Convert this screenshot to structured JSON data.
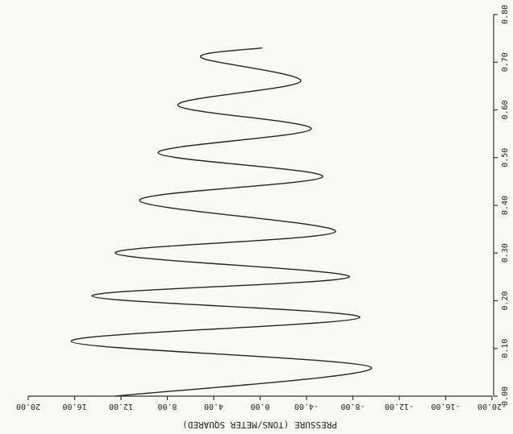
{
  "chart_data": {
    "type": "line",
    "orientation": "vertical-time",
    "x_label": "PRESSURE (TONS/METER SQUARED)",
    "x": [
      0.0,
      0.06,
      0.115,
      0.165,
      0.21,
      0.25,
      0.3,
      0.345,
      0.41,
      0.46,
      0.51,
      0.56,
      0.61,
      0.66,
      0.71,
      0.73
    ],
    "values": [
      12.5,
      -9.6,
      16.3,
      -8.6,
      14.5,
      -7.7,
      12.5,
      -6.5,
      10.4,
      -5.4,
      8.8,
      -4.4,
      7.1,
      -3.5,
      5.1,
      -0.2
    ],
    "color": "#222222",
    "xlim": [
      0,
      0.8
    ],
    "xticks": [
      {
        "value": 0,
        "label": "0.00"
      },
      {
        "value": 0.1,
        "label": "0.10"
      },
      {
        "value": 0.2,
        "label": "0.20"
      },
      {
        "value": 0.3,
        "label": "0.30"
      },
      {
        "value": 0.4,
        "label": "0.40"
      },
      {
        "value": 0.5,
        "label": "0.50"
      },
      {
        "value": 0.6,
        "label": "0.60"
      },
      {
        "value": 0.7,
        "label": "0.70"
      },
      {
        "value": 0.8,
        "label": "0.80"
      }
    ],
    "ylim": [
      20,
      -20
    ],
    "yticks": [
      {
        "value": 20,
        "label": "20.00"
      },
      {
        "value": 16,
        "label": "16.00"
      },
      {
        "value": 12,
        "label": "12.00"
      },
      {
        "value": 8,
        "label": "8.00"
      },
      {
        "value": 4,
        "label": "4.00"
      },
      {
        "value": 0,
        "label": "0.00"
      },
      {
        "value": -4,
        "label": "-4.00"
      },
      {
        "value": -8,
        "label": "-8.00"
      },
      {
        "value": -12,
        "label": "-12.00"
      },
      {
        "value": -16,
        "label": "-16.00"
      },
      {
        "value": -20,
        "label": "-20.00"
      }
    ]
  }
}
